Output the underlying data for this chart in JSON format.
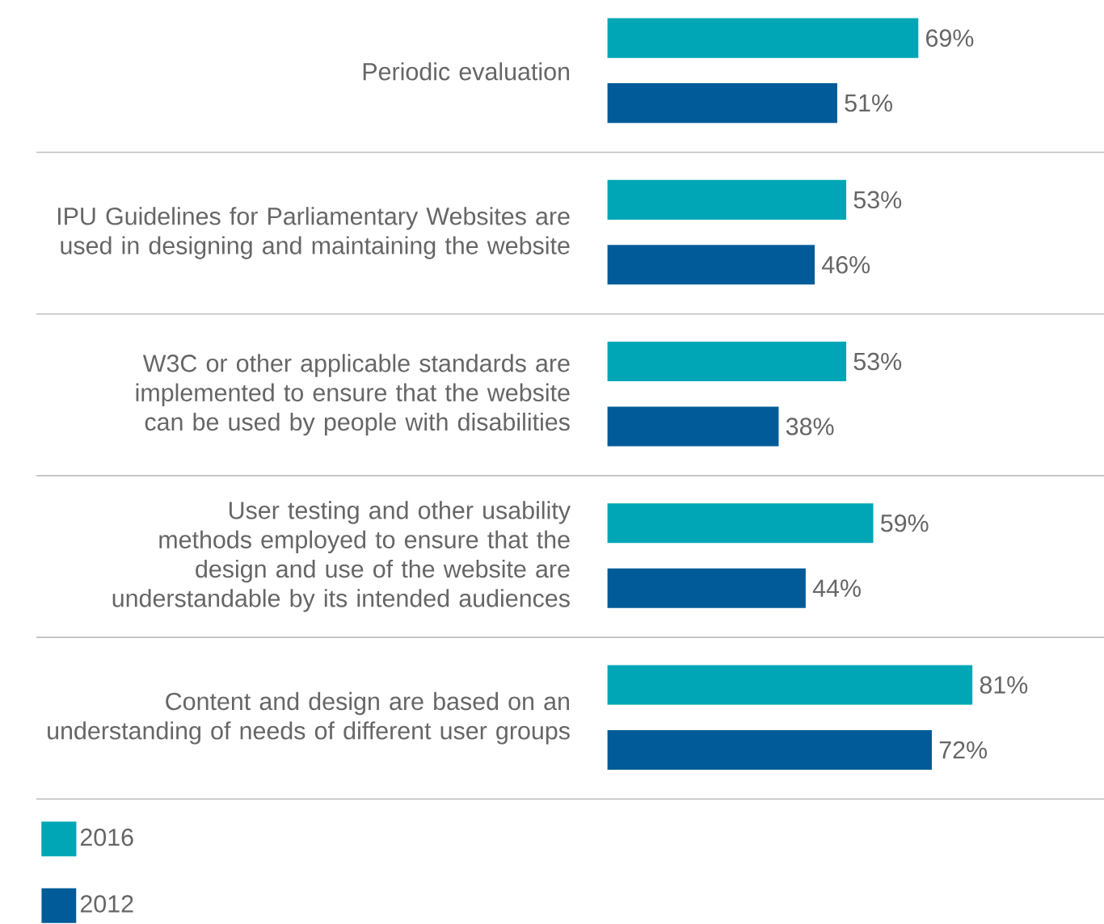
{
  "chart_data": {
    "type": "bar",
    "orientation": "horizontal",
    "legend": "bottom left",
    "categories": [
      "Periodic evaluation",
      "IPU Guidelines for Parliamentary Websites are used in designing and maintaining the website",
      "W3C or other applicable standards are implemented to ensure that the website can be used by people with disabilities",
      "User testing and other usability methods employed to ensure that the design and use of the website are understandable by its intended audiences",
      "Content and design are based on an understanding of needs of different user groups"
    ],
    "series": [
      {
        "name": "2016",
        "color": "#00a6b6",
        "values": [
          69,
          53,
          53,
          59,
          81
        ],
        "value_labels": [
          "69%",
          "53%",
          "53%",
          "59%",
          "81%"
        ]
      },
      {
        "name": "2012",
        "color": "#005b98",
        "values": [
          51,
          46,
          38,
          44,
          72
        ],
        "value_labels": [
          "51%",
          "46%",
          "38%",
          "44%",
          "72%"
        ]
      }
    ]
  }
}
